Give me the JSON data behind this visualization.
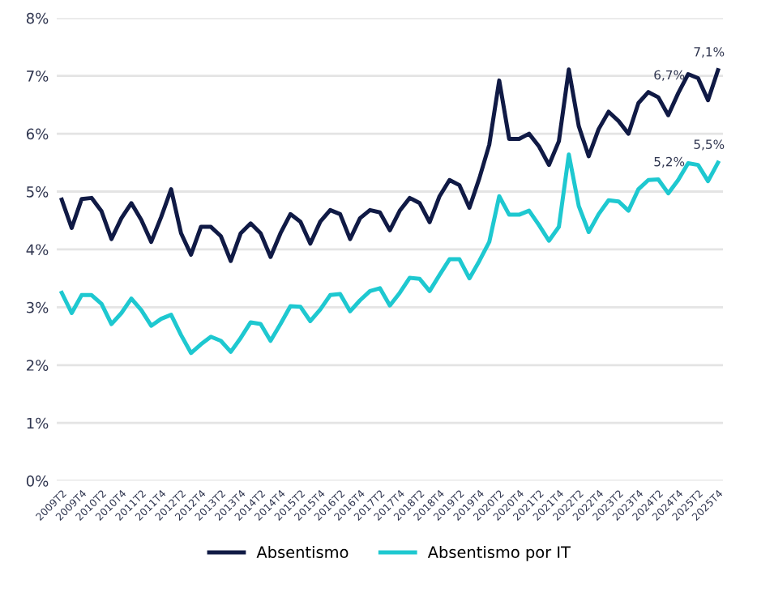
{
  "chart_data": {
    "type": "line",
    "categories": [
      "2009T2",
      null,
      "2009T4",
      null,
      "2010T2",
      null,
      "2010T4",
      null,
      "2011T2",
      null,
      "2011T4",
      null,
      "2012T2",
      null,
      "2012T4",
      null,
      "2013T2",
      null,
      "2013T4",
      null,
      "2014T2",
      null,
      "2014T4",
      null,
      "2015T2",
      null,
      "2015T4",
      null,
      "2016T2",
      null,
      "2016T4",
      null,
      "2017T2",
      null,
      "2017T4",
      null,
      "2018T2",
      null,
      "2018T4",
      null,
      "2019T2",
      null,
      "2019T4",
      null,
      "2020T2",
      null,
      "2020T4",
      null,
      "2021T2",
      null,
      "2021T4",
      null,
      "2022T2",
      null,
      "2022T4",
      null,
      "2023T2",
      null,
      "2023T4",
      null,
      "2024T2",
      null,
      "2024T4",
      null,
      "2025T2",
      null,
      "2025T4"
    ],
    "series": [
      {
        "name": "Absentismo",
        "color": "#101a45",
        "values": [
          4.86,
          4.37,
          4.87,
          4.89,
          4.66,
          4.18,
          4.54,
          4.8,
          4.51,
          4.13,
          4.56,
          5.04,
          4.28,
          3.91,
          4.39,
          4.39,
          4.23,
          3.8,
          4.28,
          4.45,
          4.28,
          3.87,
          4.28,
          4.61,
          4.48,
          4.1,
          4.48,
          4.68,
          4.61,
          4.18,
          4.54,
          4.68,
          4.64,
          4.33,
          4.67,
          4.89,
          4.8,
          4.47,
          4.92,
          5.2,
          5.11,
          4.72,
          5.23,
          5.81,
          6.92,
          5.91,
          5.91,
          6.0,
          5.78,
          5.46,
          5.87,
          7.11,
          6.13,
          5.61,
          6.08,
          6.38,
          6.22,
          6.0,
          6.53,
          6.72,
          6.63,
          6.32,
          6.7,
          7.03,
          6.96,
          6.58,
          7.1
        ],
        "value_labels": [
          null,
          null,
          null,
          null,
          null,
          null,
          null,
          null,
          null,
          null,
          null,
          null,
          null,
          null,
          null,
          null,
          null,
          null,
          null,
          null,
          null,
          null,
          null,
          null,
          null,
          null,
          null,
          null,
          null,
          null,
          null,
          null,
          null,
          null,
          null,
          null,
          null,
          null,
          null,
          null,
          null,
          null,
          null,
          null,
          null,
          null,
          null,
          null,
          null,
          null,
          null,
          null,
          null,
          null,
          null,
          null,
          null,
          null,
          null,
          null,
          null,
          null,
          "6,7%",
          null,
          null,
          null,
          "7,1%"
        ]
      },
      {
        "name": "Absentismo por IT",
        "color": "#1ec8d0",
        "values": [
          3.25,
          2.9,
          3.21,
          3.21,
          3.06,
          2.71,
          2.9,
          3.15,
          2.95,
          2.68,
          2.8,
          2.87,
          2.52,
          2.21,
          2.36,
          2.49,
          2.42,
          2.23,
          2.47,
          2.74,
          2.71,
          2.42,
          2.71,
          3.02,
          3.01,
          2.76,
          2.96,
          3.21,
          3.23,
          2.93,
          3.12,
          3.28,
          3.33,
          3.03,
          3.25,
          3.51,
          3.49,
          3.28,
          3.56,
          3.83,
          3.83,
          3.5,
          3.8,
          4.13,
          4.92,
          4.6,
          4.6,
          4.67,
          4.42,
          4.15,
          4.39,
          5.64,
          4.75,
          4.3,
          4.61,
          4.85,
          4.83,
          4.67,
          5.04,
          5.2,
          5.21,
          4.97,
          5.2,
          5.49,
          5.46,
          5.18,
          5.5
        ],
        "value_labels": [
          null,
          null,
          null,
          null,
          null,
          null,
          null,
          null,
          null,
          null,
          null,
          null,
          null,
          null,
          null,
          null,
          null,
          null,
          null,
          null,
          null,
          null,
          null,
          null,
          null,
          null,
          null,
          null,
          null,
          null,
          null,
          null,
          null,
          null,
          null,
          null,
          null,
          null,
          null,
          null,
          null,
          null,
          null,
          null,
          null,
          null,
          null,
          null,
          null,
          null,
          null,
          null,
          null,
          null,
          null,
          null,
          null,
          null,
          null,
          null,
          null,
          null,
          "5,2%",
          null,
          null,
          null,
          "5,5%"
        ]
      }
    ],
    "ylim": [
      0,
      8
    ],
    "yticks": [
      {
        "value": 0,
        "label": "0%"
      },
      {
        "value": 1,
        "label": "1%"
      },
      {
        "value": 2,
        "label": "2%"
      },
      {
        "value": 3,
        "label": "3%"
      },
      {
        "value": 4,
        "label": "4%"
      },
      {
        "value": 5,
        "label": "5%"
      },
      {
        "value": 6,
        "label": "6%"
      },
      {
        "value": 7,
        "label": "7%"
      },
      {
        "value": 8,
        "label": "8%"
      }
    ],
    "grid": "y",
    "legend": "bottom",
    "marker": "none",
    "line_style": "solid"
  }
}
